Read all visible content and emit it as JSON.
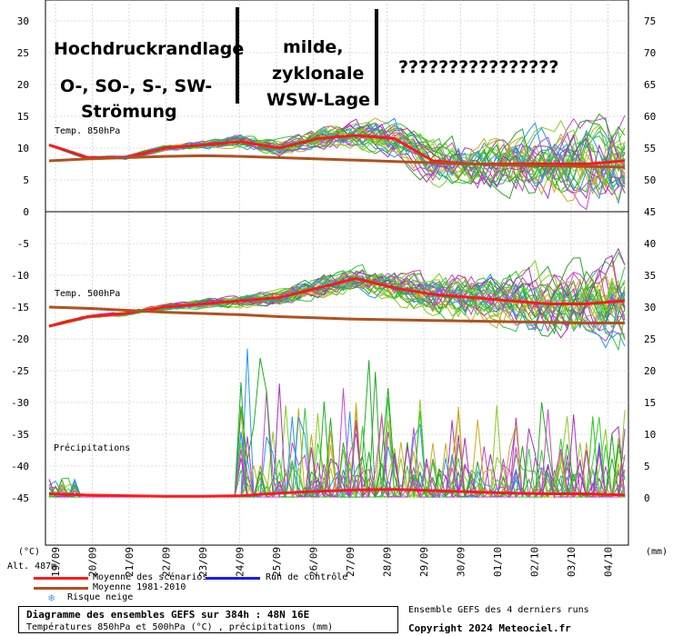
{
  "chart_data": {
    "type": "line",
    "title": "Diagramme des ensembles GEFS sur 384h : 48N 16E",
    "subtitle": "Températures 850hPa et 500hPa (°C) , précipitations (mm)",
    "x_categories": [
      "19/09",
      "20/09",
      "21/09",
      "22/09",
      "23/09",
      "24/09",
      "25/09",
      "26/09",
      "27/09",
      "28/09",
      "29/09",
      "30/09",
      "01/10",
      "02/10",
      "03/10",
      "04/10"
    ],
    "left_axis": {
      "unit_label": "(°C)",
      "ticks": [
        30,
        25,
        20,
        15,
        10,
        5,
        0,
        -5,
        -10,
        -15,
        -20,
        -25,
        -30,
        -35,
        -40,
        -45
      ]
    },
    "right_axis": {
      "unit_label": "(mm)",
      "ticks": [
        75,
        70,
        65,
        60,
        55,
        50,
        45,
        40,
        35,
        30,
        25,
        20,
        15,
        10,
        5,
        0
      ]
    },
    "altitude_label": "Alt. 487m",
    "panels": [
      {
        "label": "Temp. 850hPa",
        "series": [
          {
            "name": "Moyenne des scénarios",
            "color": "#ff1a1a",
            "values": [
              10.5,
              8.5,
              8.5,
              10,
              10.5,
              11,
              10,
              11.5,
              12,
              11.5,
              8,
              7.5,
              7.5,
              7.5,
              7.5,
              8
            ]
          },
          {
            "name": "Moyenne 1981-2010",
            "color": "#b0521e",
            "values": [
              8,
              8.3,
              8.5,
              8.7,
              8.8,
              8.7,
              8.5,
              8.3,
              8.1,
              7.9,
              7.7,
              7.5,
              7.3,
              7.2,
              7.1,
              7
            ]
          }
        ]
      },
      {
        "label": "Temp. 500hPa",
        "series": [
          {
            "name": "Moyenne des scénarios",
            "color": "#ff1a1a",
            "values": [
              -18,
              -16.5,
              -16,
              -15,
              -14.5,
              -14,
              -13.5,
              -12,
              -10.5,
              -12,
              -13,
              -13.5,
              -14,
              -14.5,
              -14.5,
              -14
            ]
          },
          {
            "name": "Moyenne 1981-2010",
            "color": "#b0521e",
            "values": [
              -15,
              -15.2,
              -15.5,
              -15.8,
              -16,
              -16.2,
              -16.5,
              -16.7,
              -16.9,
              -17,
              -17.1,
              -17.2,
              -17.3,
              -17.4,
              -17.5,
              -17.5
            ]
          }
        ]
      },
      {
        "label": "Précipitations",
        "series": [
          {
            "name": "Moyenne des scénarios",
            "color": "#ff1a1a",
            "values_mm": [
              0.5,
              0.3,
              0.2,
              0.1,
              0.1,
              0.2,
              0.6,
              0.9,
              1.1,
              1.2,
              1.0,
              0.8,
              0.6,
              0.5,
              0.5,
              0.3
            ]
          }
        ]
      }
    ],
    "legend": [
      {
        "label": "Moyenne des scénarios",
        "color": "#ff1a1a"
      },
      {
        "label": "Moyenne 1981-2010",
        "color": "#b0521e"
      },
      {
        "label": "Run de contrôle",
        "color": "#1a1aff"
      },
      {
        "label": "Risque neige",
        "color": "#4aa0e0",
        "icon": "snowflake-icon"
      }
    ],
    "annotations": [
      "Hochdruckrandlage",
      "O-, SO-, S-,   SW-",
      "Strömung",
      "milde,",
      "zyklonale",
      "WSW-Lage",
      "????????????????"
    ],
    "grid": true
  },
  "footer": {
    "title": "Diagramme des ensembles GEFS sur 384h : 48N 16E",
    "subtitle": "Températures 850hPa et 500hPa (°C) , précipitations (mm)",
    "right_line1": "Ensemble GEFS des 4 derniers runs",
    "right_line2": "Copyright 2024 Meteociel.fr"
  },
  "colors": {
    "ensemble": [
      "#33cc33",
      "#22aa22",
      "#cc44cc",
      "#ccaa22",
      "#2299ee",
      "#88cc22",
      "#aa33bb"
    ],
    "grid": "#c0c0c0"
  }
}
